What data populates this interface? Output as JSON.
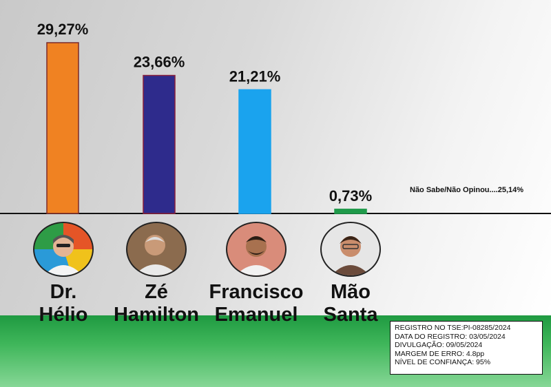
{
  "chart_data": {
    "type": "bar",
    "categories": [
      "Dr. Hélio",
      "Zé Hamilton",
      "Francisco Emanuel",
      "Mão Santa"
    ],
    "values": [
      29.27,
      23.66,
      21.21,
      0.73
    ],
    "value_labels": [
      "29,27%",
      "23,66%",
      "21,21%",
      "0,73%"
    ],
    "colors": [
      "#f08222",
      "#2e2b8c",
      "#1aa3ee",
      "#1f9a4a"
    ],
    "grid": false,
    "note": "Não Sabe/Não Opinou....25,14%"
  },
  "candidates": [
    {
      "name_line1": "Dr.",
      "name_line2": "Hélio"
    },
    {
      "name_line1": "Zé",
      "name_line2": "Hamilton"
    },
    {
      "name_line1": "Francisco",
      "name_line2": "Emanuel"
    },
    {
      "name_line1": "Mão",
      "name_line2": "Santa"
    }
  ],
  "info_box": {
    "registro": "REGISTRO NO TSE:PI-08285/2024",
    "data_registro": "DATA DO REGISTRO: 03/05/2024",
    "divulgacao": "DIVULGAÇÃO: 09/05/2024",
    "margem": "MARGEM DE ERRO: 4.8pp",
    "confianca": "NÍVEL DE CONFIANÇA: 95%"
  }
}
